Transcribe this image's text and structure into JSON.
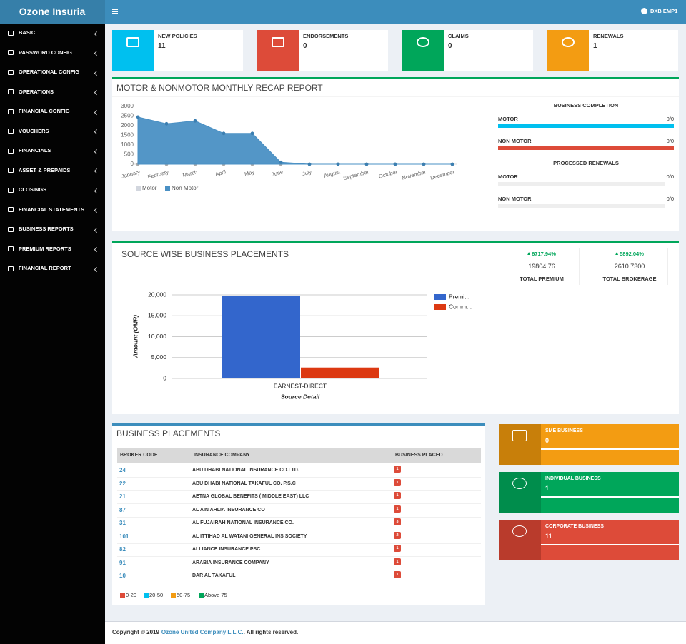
{
  "header": {
    "brand": "Ozone Insuria",
    "user": "DXB EMP1"
  },
  "sidebar": {
    "items": [
      "BASIC",
      "PASSWORD CONFIG",
      "OPERATIONAL CONFIG",
      "OPERATIONS",
      "FINANCIAL CONFIG",
      "VOUCHERS",
      "FINANCIALS",
      "ASSET & PREPAIDS",
      "CLOSINGS",
      "FINANCIAL STATEMENTS",
      "BUSINESS REPORTS",
      "PREMIUM REPORTS",
      "FINANCIAL REPORT"
    ]
  },
  "info_boxes": [
    {
      "label": "NEW POLICIES",
      "value": 11,
      "color": "#00c0ef"
    },
    {
      "label": "ENDORSEMENTS",
      "value": 0,
      "color": "#dd4b39"
    },
    {
      "label": "CLAIMS",
      "value": 0,
      "color": "#00a65a"
    },
    {
      "label": "RENEWALS",
      "value": 1,
      "color": "#f39c12"
    }
  ],
  "recap": {
    "title": "MOTOR & NONMOTOR MONTHLY RECAP REPORT",
    "chart": {
      "type": "area",
      "categories": [
        "January",
        "February",
        "March",
        "April",
        "May",
        "June",
        "July",
        "August",
        "September",
        "October",
        "November",
        "December"
      ],
      "series": [
        {
          "name": "Motor",
          "color": "#d2d6de",
          "values": [
            0,
            0,
            0,
            0,
            0,
            0,
            0,
            0,
            0,
            0,
            0,
            0
          ]
        },
        {
          "name": "Non Motor",
          "color": "#4a90c4",
          "values": [
            2450,
            2100,
            2250,
            1600,
            1600,
            100,
            0,
            0,
            0,
            0,
            0,
            0
          ]
        }
      ],
      "ylim": [
        0,
        3000
      ],
      "yticks": [
        0,
        500,
        1000,
        1500,
        2000,
        2500,
        3000
      ],
      "grid": false
    },
    "completion": {
      "title": "BUSINESS COMPLETION",
      "rows": [
        {
          "label": "MOTOR",
          "value": "0/0",
          "color": "#00c0ef"
        },
        {
          "label": "NON MOTOR",
          "value": "0/0",
          "color": "#dd4b39"
        }
      ]
    },
    "renewals": {
      "title": "PROCESSED RENEWALS",
      "rows": [
        {
          "label": "MOTOR",
          "value": "0/0",
          "color": "#eeeeee"
        },
        {
          "label": "NON MOTOR",
          "value": "0/0",
          "color": "#eeeeee"
        }
      ]
    }
  },
  "placements": {
    "title": "SOURCE WISE BUSINESS PLACEMENTS",
    "stats": [
      {
        "change": "6717.94%",
        "value": "19804.76",
        "label": "TOTAL PREMIUM"
      },
      {
        "change": "5892.04%",
        "value": "2610.7300",
        "label": "TOTAL BROKERAGE"
      }
    ],
    "chart": {
      "type": "bar",
      "categories": [
        "EARNEST-DIRECT"
      ],
      "series": [
        {
          "name": "Premi...",
          "color": "#3366cc",
          "values": [
            19804.76
          ]
        },
        {
          "name": "Comm...",
          "color": "#dc3912",
          "values": [
            2610.73
          ]
        }
      ],
      "ylim": [
        0,
        20000
      ],
      "yticks": [
        0,
        {
          "value": 5000,
          "label": "5,000"
        },
        {
          "value": 10000,
          "label": "10,000"
        },
        {
          "value": 15000,
          "label": "15,000"
        },
        {
          "value": 20000,
          "label": "20,000"
        }
      ],
      "grid": true,
      "xlabel": "Source Detail",
      "ylabel": "Amount (OMR)"
    }
  },
  "business_placements": {
    "title": "BUSINESS PLACEMENTS",
    "table": {
      "headers": [
        "BROKER CODE",
        "INSURANCE COMPANY",
        "BUSINESS PLACED"
      ],
      "rows": [
        [
          "24",
          "ABU DHABI NATIONAL INSURANCE CO.LTD.",
          "1"
        ],
        [
          "22",
          "ABU DHABI NATIONAL TAKAFUL CO. P.S.C",
          "1"
        ],
        [
          "21",
          "AETNA GLOBAL BENEFITS ( MIDDLE EAST) LLC",
          "1"
        ],
        [
          "87",
          "AL AIN AHLIA INSURANCE CO",
          "1"
        ],
        [
          "31",
          "AL FUJAIRAH NATIONAL INSURANCE CO.",
          "3"
        ],
        [
          "101",
          "AL ITTIHAD AL WATANI GENERAL INS SOCIETY",
          "2"
        ],
        [
          "82",
          "ALLIANCE INSURANCE PSC",
          "1"
        ],
        [
          "91",
          "ARABIA INSURANCE COMPANY",
          "1"
        ],
        [
          "10",
          "DAR AL TAKAFUL",
          "1"
        ]
      ]
    },
    "legend": [
      {
        "label": "0-20",
        "color": "#dd4b39"
      },
      {
        "label": "20-50",
        "color": "#00c0ef"
      },
      {
        "label": "50-75",
        "color": "#f39c12"
      },
      {
        "label": "Above 75",
        "color": "#00a65a"
      }
    ]
  },
  "segments": [
    {
      "label": "SME BUSINESS",
      "value": 0,
      "color": "#f39c12",
      "dark": "#c87f0a"
    },
    {
      "label": "INDIVIDUAL BUSINESS",
      "value": 1,
      "color": "#00a65a",
      "dark": "#008d4c"
    },
    {
      "label": "CORPORATE BUSINESS",
      "value": 11,
      "color": "#dd4b39",
      "dark": "#b93b2c"
    }
  ],
  "footer": {
    "copyright": "Copyright © 2019",
    "company": "Ozone United Company L.L.C.",
    "rights": ". All rights reserved."
  }
}
